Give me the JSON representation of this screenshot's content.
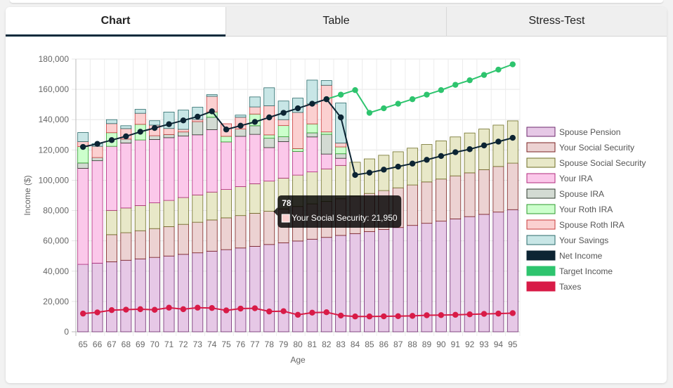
{
  "tabs": [
    {
      "label": "Chart",
      "active": true
    },
    {
      "label": "Table",
      "active": false
    },
    {
      "label": "Stress-Test",
      "active": false
    }
  ],
  "chart_data": {
    "type": "bar",
    "stacked": true,
    "xlabel": "Age",
    "ylabel": "Income ($)",
    "ylim": [
      0,
      180000
    ],
    "y_ticks": [
      "0",
      "20,000",
      "40,000",
      "60,000",
      "80,000",
      "100,000",
      "120,000",
      "140,000",
      "160,000",
      "180,000"
    ],
    "grid": true,
    "legend_position": "right",
    "categories": [
      "65",
      "66",
      "67",
      "68",
      "69",
      "70",
      "71",
      "72",
      "73",
      "74",
      "75",
      "76",
      "77",
      "78",
      "79",
      "80",
      "81",
      "82",
      "83",
      "84",
      "85",
      "86",
      "87",
      "88",
      "89",
      "90",
      "91",
      "92",
      "93",
      "94",
      "95"
    ],
    "series": [
      {
        "name": "Spouse Pension",
        "kind": "bar",
        "fill": "#e6c8e6",
        "stroke": "#6e2a6e",
        "values": [
          44500,
          45300,
          46200,
          47200,
          48100,
          49100,
          50000,
          51100,
          52100,
          53200,
          54200,
          55300,
          56400,
          57600,
          58700,
          59900,
          61100,
          62300,
          63600,
          64800,
          66100,
          67500,
          68800,
          70200,
          71600,
          73000,
          74500,
          76000,
          77500,
          79000,
          80600
        ]
      },
      {
        "name": "Your Social Security",
        "kind": "bar",
        "fill": "#ecd2d2",
        "stroke": "#7a2020",
        "values": [
          0,
          0,
          17900,
          18200,
          18600,
          19000,
          19400,
          19800,
          20200,
          20600,
          21000,
          21400,
          21800,
          21950,
          22400,
          22800,
          23300,
          23700,
          24200,
          24700,
          25200,
          25700,
          26200,
          26700,
          27300,
          27800,
          28400,
          28900,
          29500,
          30100,
          30700
        ]
      },
      {
        "name": "Spouse Social Security",
        "kind": "bar",
        "fill": "#e8e8c8",
        "stroke": "#6e6e26",
        "values": [
          0,
          0,
          16000,
          16300,
          16600,
          17000,
          17300,
          17700,
          18000,
          18400,
          18700,
          19100,
          19500,
          19900,
          20300,
          20700,
          21100,
          21500,
          22000,
          22400,
          22800,
          23300,
          23800,
          24300,
          24700,
          25200,
          25700,
          26300,
          26800,
          27300,
          27900
        ]
      },
      {
        "name": "Your IRA",
        "kind": "bar",
        "fill": "#fbc8ea",
        "stroke": "#b02a7c",
        "values": [
          63400,
          67600,
          42300,
          42900,
          43300,
          41800,
          41400,
          40600,
          39700,
          41200,
          31400,
          33200,
          32600,
          22100,
          24100,
          15600,
          23100,
          9800,
          4700,
          0,
          0,
          0,
          0,
          0,
          0,
          0,
          0,
          0,
          0,
          0,
          0
        ]
      },
      {
        "name": "Spouse IRA",
        "kind": "bar",
        "fill": "#d3dbd3",
        "stroke": "#2c3a2c",
        "values": [
          3500,
          2100,
          0,
          2600,
          0,
          2500,
          2100,
          2700,
          8700,
          8200,
          0,
          4800,
          5700,
          6200,
          3200,
          0,
          2700,
          13000,
          3000,
          0,
          0,
          0,
          0,
          0,
          0,
          0,
          0,
          0,
          0,
          0,
          0
        ]
      },
      {
        "name": "Your Roth IRA",
        "kind": "bar",
        "fill": "#ccffcc",
        "stroke": "#2b9a2b",
        "values": [
          10800,
          0,
          9000,
          0,
          10300,
          0,
          0,
          0,
          0,
          3500,
          3700,
          0,
          7700,
          2200,
          7400,
          1900,
          5900,
          1600,
          4500,
          0,
          0,
          0,
          0,
          0,
          0,
          0,
          0,
          0,
          0,
          0,
          0
        ]
      },
      {
        "name": "Spouse Roth IRA",
        "kind": "bar",
        "fill": "#fbd0d0",
        "stroke": "#c83a3a",
        "values": [
          3300,
          7400,
          6000,
          6900,
          7300,
          7000,
          4000,
          1700,
          1400,
          10300,
          8300,
          7800,
          4700,
          19200,
          3900,
          23900,
          13200,
          30800,
          2600,
          0,
          0,
          0,
          0,
          0,
          0,
          0,
          0,
          0,
          0,
          0,
          0
        ]
      },
      {
        "name": "Your Savings",
        "kind": "bar",
        "fill": "#c8e6e6",
        "stroke": "#2a6a6a",
        "values": [
          6000,
          1800,
          2600,
          1900,
          2600,
          2900,
          10800,
          12700,
          8100,
          1100,
          0,
          1400,
          6600,
          11900,
          12300,
          9400,
          15700,
          3100,
          26400,
          0,
          0,
          0,
          0,
          0,
          0,
          0,
          0,
          0,
          0,
          0,
          0
        ]
      },
      {
        "name": "Net Income",
        "kind": "line",
        "color": "#0c2433",
        "values": [
          122000,
          124000,
          126500,
          129000,
          132000,
          134500,
          137000,
          139500,
          142000,
          145500,
          133500,
          136000,
          138500,
          141500,
          144500,
          147500,
          150500,
          153500,
          141500,
          103500,
          105000,
          107000,
          109000,
          111000,
          113500,
          116000,
          118500,
          120500,
          123000,
          125500,
          128000
        ]
      },
      {
        "name": "Target Income",
        "kind": "line",
        "color": "#2ec46e",
        "values": [
          null,
          null,
          null,
          null,
          null,
          null,
          null,
          null,
          null,
          null,
          null,
          null,
          null,
          null,
          null,
          null,
          null,
          153500,
          156500,
          159500,
          144500,
          147500,
          150500,
          153500,
          156500,
          159500,
          163000,
          166000,
          169500,
          173000,
          176500
        ]
      },
      {
        "name": "Taxes",
        "kind": "line",
        "color": "#d81b47",
        "values": [
          12000,
          12800,
          14300,
          14600,
          14900,
          14500,
          15900,
          14900,
          15900,
          15700,
          14100,
          15300,
          15500,
          13400,
          13600,
          11200,
          12600,
          12900,
          10700,
          10100,
          10100,
          10200,
          10300,
          10500,
          10900,
          11000,
          11200,
          11500,
          11800,
          12000,
          12300
        ]
      }
    ],
    "tooltip": {
      "title": "78",
      "label": "Your Social Security: 21,950",
      "swatch": "#fbd0d0",
      "anchor_category": "78"
    }
  }
}
